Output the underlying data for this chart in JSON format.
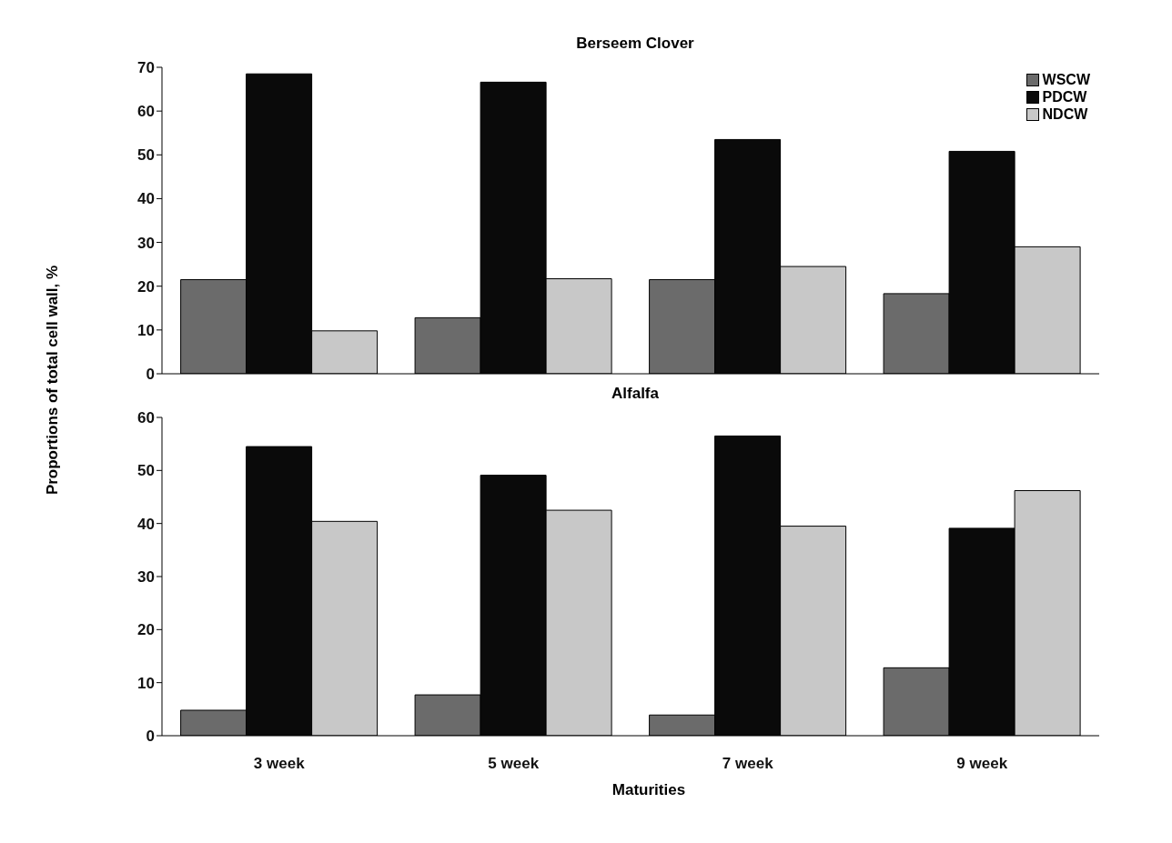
{
  "chart_data": [
    {
      "type": "bar",
      "title": "Berseem Clover",
      "ylabel": "Proportions of total cell wall, %",
      "categories": [
        null,
        null,
        null,
        null
      ],
      "tick_labels": "y",
      "ylim": [
        0,
        70
      ],
      "yticks": [
        0,
        10,
        20,
        30,
        40,
        50,
        60,
        70
      ],
      "grid": false,
      "legend": "top right",
      "series": [
        {
          "name": "WSCW",
          "color": "#6b6b6b",
          "values": [
            21.5,
            12.8,
            21.5,
            18.3
          ]
        },
        {
          "name": "PDCW",
          "color": "#0a0a0a",
          "values": [
            68.5,
            66.6,
            53.5,
            50.8
          ]
        },
        {
          "name": "NDCW",
          "color": "#c8c8c8",
          "values": [
            9.8,
            21.7,
            24.5,
            29
          ]
        }
      ]
    },
    {
      "type": "bar",
      "title": "Alfalfa",
      "xlabel": "Maturities",
      "categories": [
        "3 week",
        "5 week",
        "7 week",
        "9 week"
      ],
      "ylim": [
        0,
        60
      ],
      "yticks": [
        0,
        10,
        20,
        30,
        40,
        50,
        60
      ],
      "grid": false,
      "legend": false,
      "series": [
        {
          "color": "#6b6b6b",
          "values": [
            4.8,
            7.7,
            3.9,
            12.8
          ]
        },
        {
          "color": "#0a0a0a",
          "values": [
            54.5,
            49.1,
            56.5,
            39.1
          ]
        },
        {
          "color": "#c8c8c8",
          "values": [
            40.4,
            42.5,
            39.5,
            46.2
          ]
        }
      ]
    }
  ]
}
